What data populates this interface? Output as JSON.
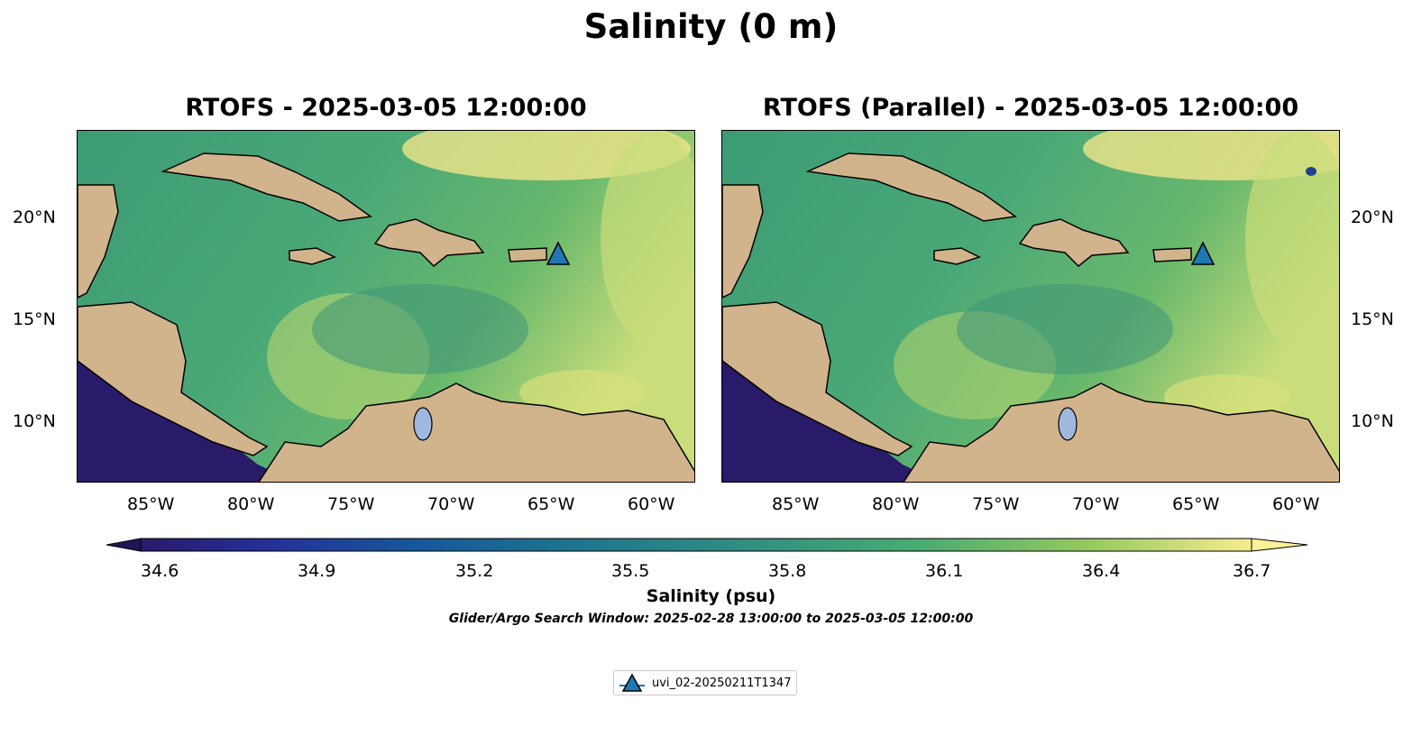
{
  "figure": {
    "title": "Salinity (0 m)",
    "search_window_note": "Glider/Argo Search Window: 2025-02-28 13:00:00 to 2025-03-05 12:00:00"
  },
  "panels": [
    {
      "title": "RTOFS - 2025-03-05 12:00:00"
    },
    {
      "title": "RTOFS (Parallel) - 2025-03-05 12:00:00"
    }
  ],
  "axes": {
    "lon_ticks": [
      "85°W",
      "80°W",
      "75°W",
      "70°W",
      "65°W",
      "60°W"
    ],
    "lat_ticks": [
      "20°N",
      "15°N",
      "10°N"
    ],
    "lon_range": [
      -89,
      -58
    ],
    "lat_range": [
      7,
      24.5
    ]
  },
  "colorbar": {
    "label": "Salinity (psu)",
    "ticks": [
      "34.6",
      "34.9",
      "35.2",
      "35.5",
      "35.8",
      "36.1",
      "36.4",
      "36.7"
    ],
    "min": 34.6,
    "max": 36.7,
    "extend": "both",
    "colormap": "haline"
  },
  "legend": {
    "entries": [
      {
        "label": "uvi_02-20250211T1347",
        "marker": "triangle",
        "color": "#1f77b4"
      }
    ],
    "placement": "bottom-center"
  },
  "glider": {
    "label": "uvi_02-20250211T1347",
    "lon": -65.2,
    "lat": 18.1
  },
  "colors": {
    "land": "#d2b48c",
    "lake": "#9fb9de",
    "marker": "#1f77b4",
    "pacific": "#2a1a6a"
  }
}
